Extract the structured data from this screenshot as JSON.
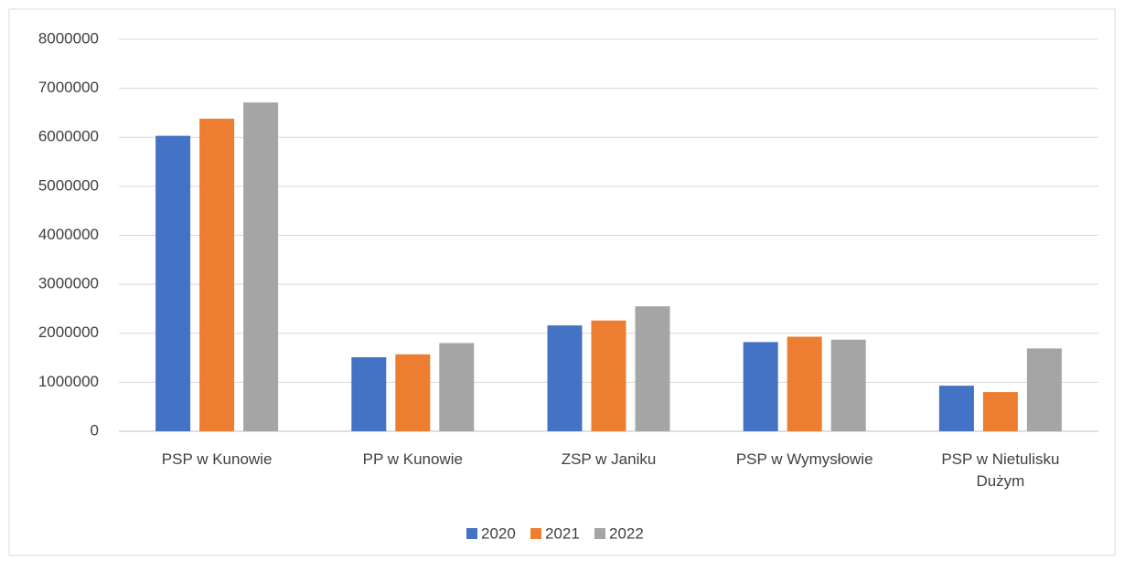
{
  "chart_data": {
    "type": "bar",
    "categories": [
      "PSP w Kunowie",
      "PP w Kunowie",
      "ZSP w Janiku",
      "PSP w Wymysłowie",
      "PSP w Nietulisku Dużym"
    ],
    "series": [
      {
        "name": "2020",
        "color": "#4472c4",
        "values": [
          6030000,
          1510000,
          2160000,
          1820000,
          930000
        ]
      },
      {
        "name": "2021",
        "color": "#ed7d31",
        "values": [
          6380000,
          1570000,
          2260000,
          1930000,
          800000
        ]
      },
      {
        "name": "2022",
        "color": "#a5a5a5",
        "values": [
          6710000,
          1800000,
          2550000,
          1870000,
          1690000
        ]
      }
    ],
    "ylim": [
      0,
      8000000
    ],
    "yticks": [
      0,
      1000000,
      2000000,
      3000000,
      4000000,
      5000000,
      6000000,
      7000000,
      8000000
    ],
    "grid": true,
    "legend": "bottom"
  }
}
